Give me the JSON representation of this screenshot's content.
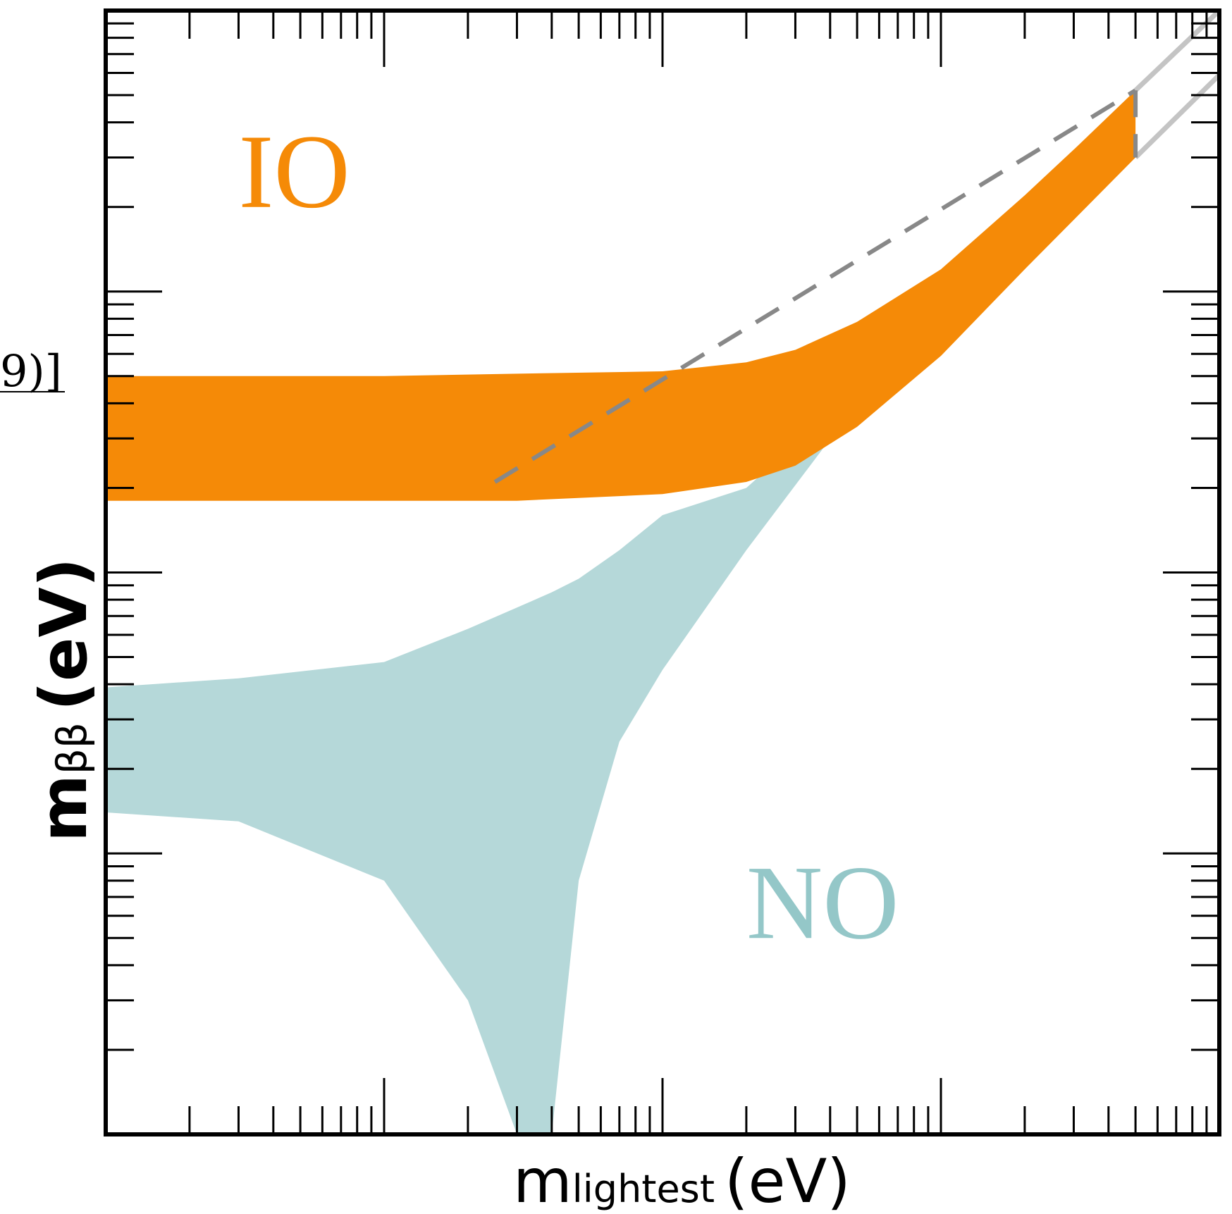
{
  "chart_data": {
    "type": "area",
    "title": "",
    "xlabel_main": "m",
    "xlabel_sub": "lightest",
    "xlabel_unit": "(eV)",
    "ylabel_main": "m",
    "ylabel_sub": "ββ",
    "ylabel_unit": "(eV)",
    "xscale": "log",
    "yscale": "log",
    "xlim": [
      0.0001,
      1
    ],
    "ylim": [
      0.0001,
      1
    ],
    "tick_labels_shown": false,
    "grid": false,
    "legend": "none",
    "series": [
      {
        "name": "IO",
        "color": "#f58a07",
        "x": [
          0.0001,
          0.001,
          0.003,
          0.01,
          0.02,
          0.03,
          0.05,
          0.1,
          0.2,
          0.3,
          0.5
        ],
        "upper": [
          0.05,
          0.05,
          0.051,
          0.052,
          0.056,
          0.062,
          0.078,
          0.12,
          0.22,
          0.32,
          0.52
        ],
        "lower": [
          0.018,
          0.018,
          0.018,
          0.019,
          0.021,
          0.024,
          0.033,
          0.059,
          0.12,
          0.18,
          0.3
        ]
      },
      {
        "name": "NO",
        "color": "#b5d8d9",
        "x": [
          0.0001,
          0.0003,
          0.001,
          0.002,
          0.003,
          0.004,
          0.005,
          0.007,
          0.01,
          0.02,
          0.05,
          0.1
        ],
        "upper": [
          0.0039,
          0.0042,
          0.0048,
          0.0063,
          0.0075,
          0.0085,
          0.0095,
          0.012,
          0.016,
          0.02,
          0.045,
          0.09
        ],
        "lower": [
          0.0014,
          0.0013,
          0.0008,
          0.0003,
          0.0001,
          0.0001,
          0.0008,
          0.0025,
          0.0045,
          0.012,
          0.04,
          0.085
        ]
      }
    ],
    "annotations": [
      {
        "text": "IO",
        "color": "#f58a07",
        "x": 0.0003,
        "y": 0.2
      },
      {
        "text": "NO",
        "color": "#94c7c8",
        "x": 0.02,
        "y": 0.0005
      }
    ],
    "cutoff_x": 0.5,
    "guide_lines": [
      {
        "style": "dashed",
        "color": "#888888",
        "x": [
          0.0025,
          0.5
        ],
        "y": [
          0.021,
          0.52
        ]
      },
      {
        "style": "solid",
        "color": "#c4c4c4",
        "x": [
          0.5,
          1
        ],
        "y": [
          0.52,
          1
        ]
      },
      {
        "style": "solid",
        "color": "#c4c4c4",
        "x": [
          0.5,
          1
        ],
        "y": [
          0.3,
          0.59
        ]
      }
    ]
  },
  "edge_text_left": "9)]"
}
